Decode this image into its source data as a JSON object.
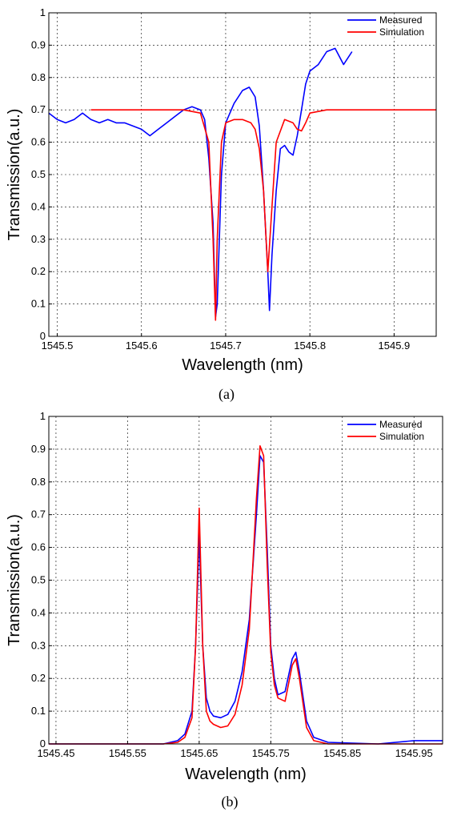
{
  "chart_data": [
    {
      "type": "line",
      "panel_label": "(a)",
      "xlabel": "Wavelength (nm)",
      "ylabel": "Transmission(a.u.)",
      "xlim": [
        1545.49,
        1545.95
      ],
      "ylim": [
        0,
        1
      ],
      "xticks": [
        1545.5,
        1545.6,
        1545.7,
        1545.8,
        1545.9
      ],
      "xtick_labels": [
        "1545.5",
        "1545.6",
        "1545.7",
        "1545.8",
        "1545.9"
      ],
      "yticks": [
        0,
        0.1,
        0.2,
        0.3,
        0.4,
        0.5,
        0.6,
        0.7,
        0.8,
        0.9,
        1
      ],
      "ytick_labels": [
        "0",
        "0.1",
        "0.2",
        "0.3",
        "0.4",
        "0.5",
        "0.6",
        "0.7",
        "0.8",
        "0.9",
        "1"
      ],
      "grid": true,
      "legend_position": "top-right",
      "series": [
        {
          "name": "Measured",
          "color": "#0000ff",
          "x": [
            1545.49,
            1545.5,
            1545.51,
            1545.52,
            1545.53,
            1545.54,
            1545.55,
            1545.56,
            1545.57,
            1545.58,
            1545.59,
            1545.6,
            1545.61,
            1545.62,
            1545.63,
            1545.64,
            1545.65,
            1545.66,
            1545.67,
            1545.675,
            1545.68,
            1545.685,
            1545.688,
            1545.69,
            1545.695,
            1545.7,
            1545.71,
            1545.72,
            1545.728,
            1545.735,
            1545.74,
            1545.745,
            1545.75,
            1545.752,
            1545.755,
            1545.76,
            1545.765,
            1545.77,
            1545.775,
            1545.78,
            1545.785,
            1545.79,
            1545.795,
            1545.8,
            1545.81,
            1545.82,
            1545.83,
            1545.84,
            1545.85
          ],
          "y": [
            0.69,
            0.67,
            0.66,
            0.67,
            0.69,
            0.67,
            0.66,
            0.67,
            0.66,
            0.66,
            0.65,
            0.64,
            0.62,
            0.64,
            0.66,
            0.68,
            0.7,
            0.71,
            0.7,
            0.67,
            0.55,
            0.35,
            0.06,
            0.1,
            0.5,
            0.66,
            0.72,
            0.76,
            0.77,
            0.74,
            0.65,
            0.45,
            0.2,
            0.08,
            0.25,
            0.45,
            0.58,
            0.59,
            0.57,
            0.56,
            0.62,
            0.7,
            0.78,
            0.82,
            0.84,
            0.88,
            0.89,
            0.84,
            0.88
          ]
        },
        {
          "name": "Simulation",
          "color": "#ff0000",
          "x": [
            1545.54,
            1545.6,
            1545.65,
            1545.67,
            1545.68,
            1545.685,
            1545.688,
            1545.69,
            1545.695,
            1545.7,
            1545.71,
            1545.72,
            1545.73,
            1545.735,
            1545.74,
            1545.745,
            1545.75,
            1545.755,
            1545.76,
            1545.77,
            1545.78,
            1545.785,
            1545.79,
            1545.795,
            1545.8,
            1545.82,
            1545.85,
            1545.9,
            1545.95
          ],
          "y": [
            0.7,
            0.7,
            0.7,
            0.69,
            0.6,
            0.3,
            0.05,
            0.3,
            0.6,
            0.66,
            0.67,
            0.67,
            0.66,
            0.64,
            0.58,
            0.45,
            0.2,
            0.4,
            0.6,
            0.67,
            0.66,
            0.64,
            0.635,
            0.66,
            0.69,
            0.7,
            0.7,
            0.7,
            0.7
          ]
        }
      ]
    },
    {
      "type": "line",
      "panel_label": "(b)",
      "xlabel": "Wavelength (nm)",
      "ylabel": "Transmission(a.u.)",
      "xlim": [
        1545.44,
        1545.99
      ],
      "ylim": [
        0,
        1
      ],
      "xticks": [
        1545.45,
        1545.55,
        1545.65,
        1545.75,
        1545.85,
        1545.95
      ],
      "xtick_labels": [
        "1545.45",
        "1545.55",
        "1545.65",
        "1545.75",
        "1545.85",
        "1545.95"
      ],
      "yticks": [
        0,
        0.1,
        0.2,
        0.3,
        0.4,
        0.5,
        0.6,
        0.7,
        0.8,
        0.9,
        1
      ],
      "ytick_labels": [
        "0",
        "0.1",
        "0.2",
        "0.3",
        "0.4",
        "0.5",
        "0.6",
        "0.7",
        "0.8",
        "0.9",
        "1"
      ],
      "grid": true,
      "legend_position": "top-right",
      "series": [
        {
          "name": "Measured",
          "color": "#0000ff",
          "x": [
            1545.44,
            1545.55,
            1545.6,
            1545.62,
            1545.63,
            1545.64,
            1545.645,
            1545.65,
            1545.655,
            1545.66,
            1545.665,
            1545.67,
            1545.68,
            1545.69,
            1545.7,
            1545.71,
            1545.72,
            1545.73,
            1545.735,
            1545.74,
            1545.745,
            1545.75,
            1545.755,
            1545.76,
            1545.77,
            1545.78,
            1545.785,
            1545.79,
            1545.8,
            1545.81,
            1545.83,
            1545.9,
            1545.95,
            1545.99
          ],
          "y": [
            0.0,
            0.0,
            0.0,
            0.01,
            0.03,
            0.1,
            0.3,
            0.64,
            0.3,
            0.14,
            0.1,
            0.085,
            0.08,
            0.09,
            0.13,
            0.22,
            0.38,
            0.7,
            0.88,
            0.86,
            0.6,
            0.3,
            0.2,
            0.15,
            0.16,
            0.26,
            0.28,
            0.22,
            0.07,
            0.02,
            0.005,
            0.0,
            0.01,
            0.01
          ]
        },
        {
          "name": "Simulation",
          "color": "#ff0000",
          "x": [
            1545.44,
            1545.55,
            1545.6,
            1545.62,
            1545.63,
            1545.64,
            1545.645,
            1545.65,
            1545.655,
            1545.66,
            1545.665,
            1545.67,
            1545.68,
            1545.69,
            1545.7,
            1545.71,
            1545.72,
            1545.73,
            1545.735,
            1545.74,
            1545.745,
            1545.75,
            1545.755,
            1545.76,
            1545.77,
            1545.78,
            1545.785,
            1545.79,
            1545.8,
            1545.81,
            1545.83,
            1545.9,
            1545.99
          ],
          "y": [
            0.0,
            0.0,
            0.0,
            0.005,
            0.02,
            0.08,
            0.3,
            0.72,
            0.3,
            0.1,
            0.07,
            0.06,
            0.05,
            0.055,
            0.09,
            0.18,
            0.35,
            0.75,
            0.91,
            0.88,
            0.55,
            0.28,
            0.18,
            0.14,
            0.13,
            0.24,
            0.26,
            0.2,
            0.05,
            0.01,
            0.0,
            0.0,
            0.0
          ]
        }
      ]
    }
  ]
}
